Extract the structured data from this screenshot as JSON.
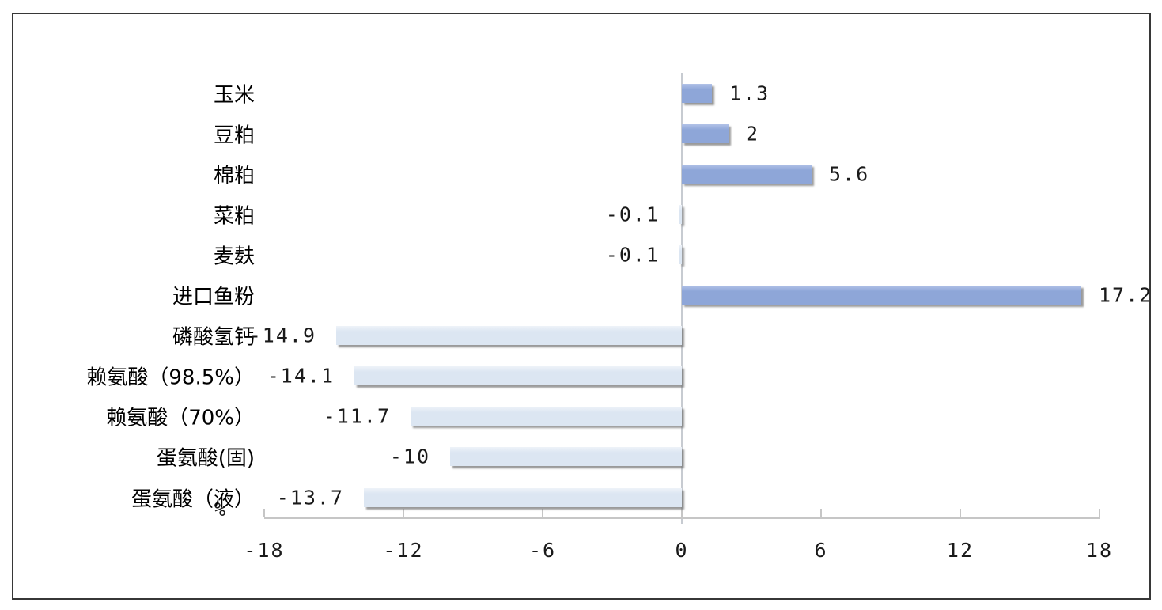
{
  "window": {
    "background_color": "#ffffff",
    "frame_border_color": "#373737"
  },
  "chart_data": {
    "type": "bar",
    "orientation": "horizontal",
    "title": "",
    "categories": [
      "玉米",
      "豆粕",
      "棉粕",
      "菜粕",
      "麦麸",
      "进口鱼粉",
      "磷酸氢钙",
      "赖氨酸（98.5%）",
      "赖氨酸（70%）",
      "蛋氨酸(固)",
      "蛋氨酸（液）"
    ],
    "values": [
      1.3,
      2,
      5.6,
      -0.1,
      -0.1,
      17.2,
      -14.9,
      -14.1,
      -11.7,
      -10,
      -13.7
    ],
    "value_labels": [
      "1.3",
      "2",
      "5.6",
      "-0.1",
      "-0.1",
      "17.2",
      "-14.9",
      "-14.1",
      "-11.7",
      "-10",
      "-13.7"
    ],
    "xlabel": "",
    "ylabel": "",
    "axis_unit_label": "%",
    "xlim": [
      -18,
      18
    ],
    "x_ticks": [
      -18,
      -12,
      -6,
      0,
      6,
      12,
      18
    ],
    "x_tick_labels": [
      "-18",
      "-12",
      "-6",
      "0",
      "6",
      "12",
      "18"
    ],
    "grid": "zero-line-only",
    "legend": "none",
    "data_labels": "outside-end",
    "colors": {
      "positive_bar": "#8ea6d8",
      "negative_bar": "#dce6f2",
      "axis": "#c6c6c6",
      "text": "#000000"
    }
  }
}
